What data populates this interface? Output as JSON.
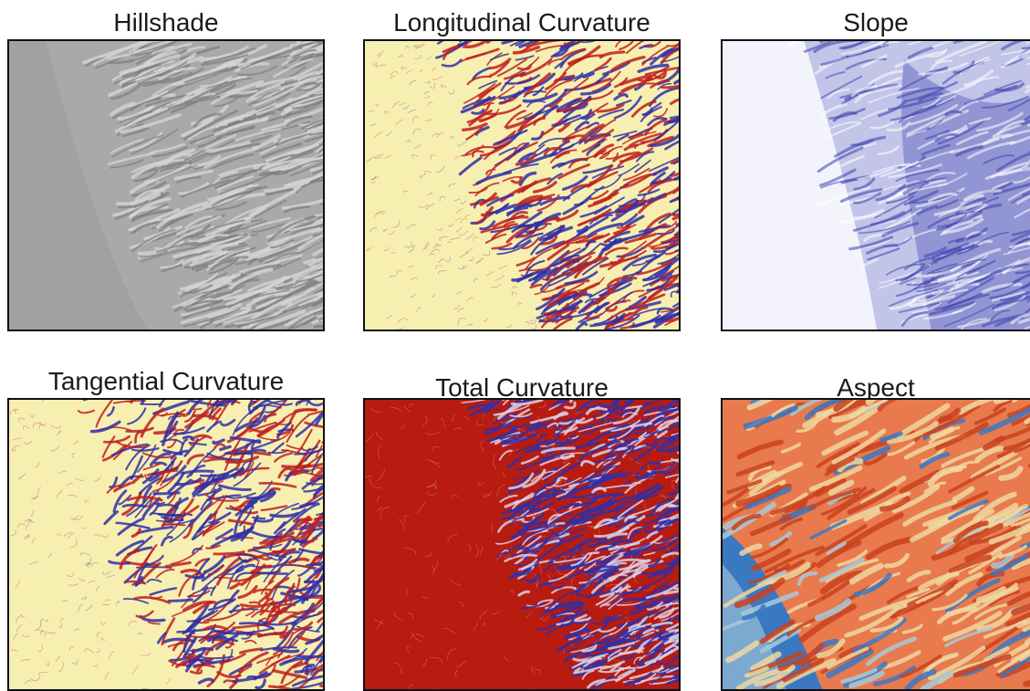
{
  "panels": [
    {
      "title": "Hillshade",
      "render": "hillshade",
      "colors": {
        "base": "#a9a9a9",
        "light": "#d4d4d4",
        "dark": "#7e7e7e",
        "flat": "#9c9c9c"
      }
    },
    {
      "title": "Longitudinal Curvature",
      "render": "curvature",
      "colors": {
        "base": "#f7efb0",
        "pos": "#bf1e1e",
        "neg": "#2f2fa8"
      }
    },
    {
      "title": "Slope",
      "render": "slope",
      "colors": {
        "base": "#f2f3fb",
        "mid": "#9b9dd8",
        "high": "#3a3fad"
      }
    },
    {
      "title": "Tangential Curvature",
      "render": "tangential",
      "colors": {
        "base": "#f7efb0",
        "pos": "#bf1e1e",
        "neg": "#2f2fa8"
      }
    },
    {
      "title": "Total Curvature",
      "render": "total",
      "colors": {
        "base": "#b81b10",
        "pos": "#f0d28e",
        "neg": "#2f2fa8"
      }
    },
    {
      "title": "Aspect",
      "render": "aspect",
      "colors": {
        "base": "#e87a4d",
        "light": "#eed7a0",
        "dark": "#c9421f",
        "blue": "#3b78c2",
        "pale": "#a8c9d8"
      }
    }
  ]
}
